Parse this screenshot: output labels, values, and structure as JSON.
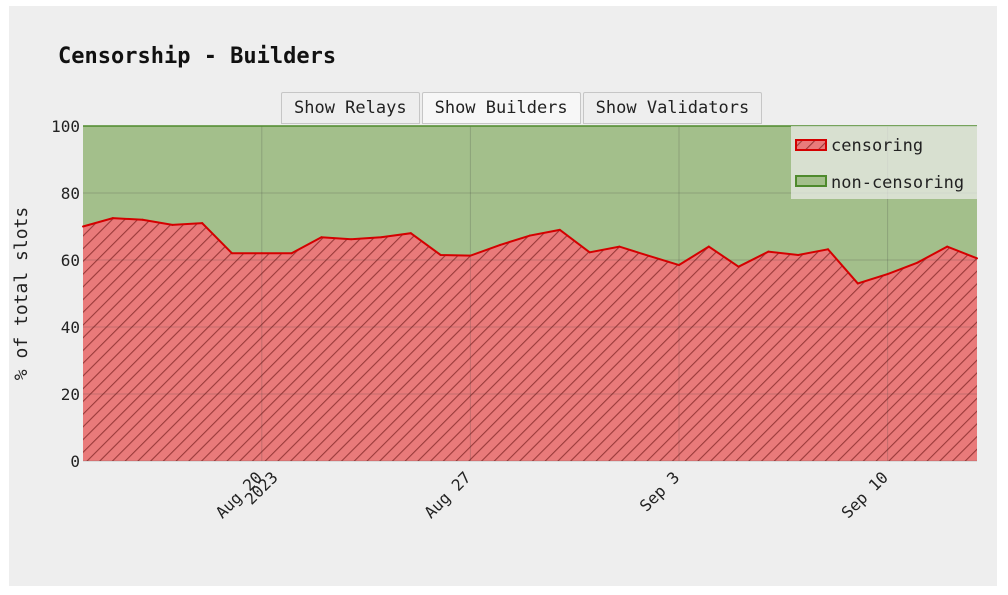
{
  "title": "Censorship - Builders",
  "buttons": [
    {
      "label": "Show Relays",
      "active": false
    },
    {
      "label": "Show Builders",
      "active": true
    },
    {
      "label": "Show Validators",
      "active": false
    }
  ],
  "colors": {
    "censoring_fill": "#e97a7a",
    "censoring_line": "#d40000",
    "censoring_hatch": "#9a3a3a",
    "noncensoring_fill": "#a3bf8b",
    "noncensoring_line": "#4e8a2c",
    "background": "#eeeeee"
  },
  "chart_data": {
    "type": "area",
    "stacked": true,
    "title": "Censorship - Builders",
    "ylabel": "% of total slots",
    "xlabel": "",
    "ylim": [
      0,
      100
    ],
    "yticks": [
      0,
      20,
      40,
      60,
      80,
      100
    ],
    "xlim": [
      "2023-08-14",
      "2023-09-13"
    ],
    "xticks": [
      {
        "date": "2023-08-20",
        "label": "Aug 20",
        "sublabel": "2023"
      },
      {
        "date": "2023-08-27",
        "label": "Aug 27",
        "sublabel": ""
      },
      {
        "date": "2023-09-03",
        "label": "Sep 3",
        "sublabel": ""
      },
      {
        "date": "2023-09-10",
        "label": "Sep 10",
        "sublabel": ""
      }
    ],
    "grid": true,
    "legend_position": "top-right",
    "x": [
      "2023-08-14",
      "2023-08-15",
      "2023-08-16",
      "2023-08-17",
      "2023-08-18",
      "2023-08-19",
      "2023-08-20",
      "2023-08-21",
      "2023-08-22",
      "2023-08-23",
      "2023-08-24",
      "2023-08-25",
      "2023-08-26",
      "2023-08-27",
      "2023-08-28",
      "2023-08-29",
      "2023-08-30",
      "2023-08-31",
      "2023-09-01",
      "2023-09-02",
      "2023-09-03",
      "2023-09-04",
      "2023-09-05",
      "2023-09-06",
      "2023-09-07",
      "2023-09-08",
      "2023-09-09",
      "2023-09-10",
      "2023-09-11",
      "2023-09-12",
      "2023-09-13"
    ],
    "series": [
      {
        "name": "censoring",
        "values": [
          70,
          72.5,
          72,
          70.5,
          71,
          62,
          62,
          62,
          66.8,
          66.2,
          66.8,
          68,
          61.5,
          61.3,
          64.5,
          67.3,
          69,
          62.3,
          64,
          61.2,
          58.5,
          64,
          58,
          62.5,
          61.5,
          63.2,
          53,
          55.8,
          59.2,
          64,
          60.5
        ]
      },
      {
        "name": "non-censoring",
        "values": [
          30,
          27.5,
          28,
          29.5,
          29,
          38,
          38,
          38,
          33.2,
          33.8,
          33.2,
          32,
          38.5,
          38.7,
          35.5,
          32.7,
          31,
          37.7,
          36,
          38.8,
          41.5,
          36,
          42,
          37.5,
          38.5,
          36.8,
          47,
          44.2,
          40.8,
          36,
          39.5
        ]
      }
    ]
  }
}
